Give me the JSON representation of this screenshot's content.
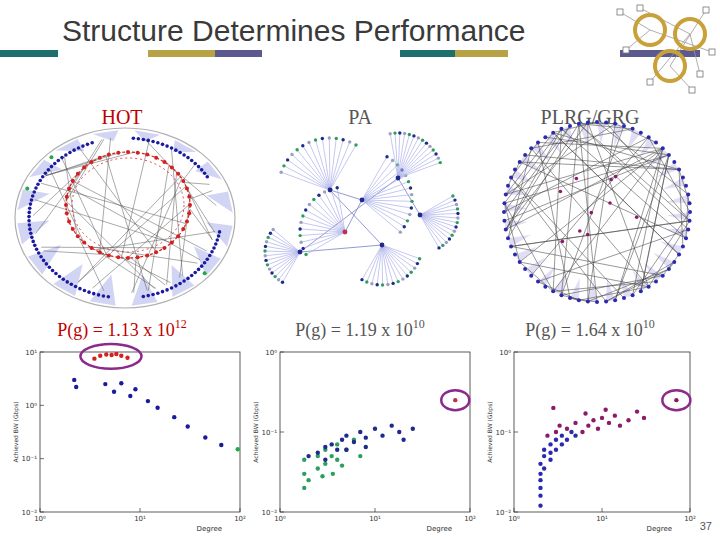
{
  "slide": {
    "title": "Structure Determines Performance",
    "page_number": "37",
    "panels": [
      {
        "heading": "HOT",
        "performance": {
          "text": "P(g) = 1.13 x 10",
          "exponent": "12"
        }
      },
      {
        "heading": "PA",
        "performance": {
          "text": "P(g) = 1.19 x 10",
          "exponent": "10"
        }
      },
      {
        "heading": "PLRG/GRG",
        "performance": {
          "text": "P(g) = 1.64 x 10",
          "exponent": "10"
        }
      }
    ]
  },
  "chart_data": [
    {
      "type": "scatter",
      "log": true,
      "grid": false,
      "marker": "circle",
      "x_label": "Degree",
      "y_label": "Achieved BW (Gbps)",
      "xlim": [
        1,
        100
      ],
      "ylim": [
        0.01,
        10
      ],
      "xticks": [
        {
          "value": 1,
          "label": "10⁰"
        },
        {
          "value": 10,
          "label": "10¹"
        },
        {
          "value": 100,
          "label": "10²"
        }
      ],
      "yticks": [
        {
          "value": 0.01,
          "label": "10⁻²"
        },
        {
          "value": 0.1,
          "label": "10⁻¹"
        },
        {
          "value": 1,
          "label": "10⁰"
        },
        {
          "value": 10,
          "label": "10¹"
        }
      ],
      "series": [
        {
          "color": "#d42020",
          "x": [
            3.5,
            4,
            4.6,
            5.2,
            5.8,
            6.5,
            7.5
          ],
          "values": [
            7.5,
            8.5,
            9,
            8.8,
            9.2,
            8.5,
            7.8
          ]
        },
        {
          "color": "#1a1aa0",
          "x": [
            2.2,
            2.3,
            4.5,
            5.5,
            6.5,
            8,
            9,
            12,
            15,
            22,
            30,
            45,
            65
          ],
          "values": [
            3,
            2.2,
            2.5,
            1.8,
            2.6,
            1.5,
            2,
            1.2,
            0.9,
            0.6,
            0.4,
            0.25,
            0.18
          ]
        },
        {
          "color": "#22aa44",
          "x": [
            95
          ],
          "values": [
            0.15
          ]
        }
      ]
    },
    {
      "type": "scatter",
      "log": true,
      "grid": false,
      "marker": "circle",
      "x_label": "Degree",
      "y_label": "Achieved BW (Gbps)",
      "xlim": [
        1,
        100
      ],
      "ylim": [
        0.01,
        1
      ],
      "xticks": [
        {
          "value": 1,
          "label": "10⁰"
        },
        {
          "value": 10,
          "label": "10¹"
        },
        {
          "value": 100,
          "label": "10²"
        }
      ],
      "yticks": [
        {
          "value": 0.01,
          "label": "10⁻²"
        },
        {
          "value": 0.1,
          "label": "10⁻¹"
        },
        {
          "value": 1,
          "label": "10⁰"
        }
      ],
      "series": [
        {
          "color": "#2e9e5e",
          "x": [
            1.8,
            1.8,
            1.8,
            2.5,
            2.5,
            3,
            3,
            3.5,
            4,
            4,
            5,
            6,
            7,
            2,
            2.8,
            3.6,
            4.5
          ],
          "values": [
            0.02,
            0.03,
            0.045,
            0.035,
            0.05,
            0.04,
            0.06,
            0.05,
            0.045,
            0.07,
            0.06,
            0.08,
            0.05,
            0.025,
            0.028,
            0.03,
            0.038
          ]
        },
        {
          "color": "#1e2a8c",
          "x": [
            2,
            2.5,
            3,
            3.5,
            4,
            4.5,
            5,
            6,
            7,
            8,
            10,
            12,
            15,
            18,
            20,
            25,
            3,
            5,
            8
          ],
          "values": [
            0.05,
            0.055,
            0.065,
            0.07,
            0.06,
            0.08,
            0.09,
            0.075,
            0.1,
            0.085,
            0.11,
            0.09,
            0.12,
            0.1,
            0.08,
            0.11,
            0.045,
            0.06,
            0.065
          ]
        },
        {
          "color": "#c0304a",
          "x": [
            70
          ],
          "values": [
            0.25
          ]
        }
      ]
    },
    {
      "type": "scatter",
      "log": true,
      "grid": false,
      "marker": "circle",
      "x_label": "Degree",
      "y_label": "Achieved BW (Gbps)",
      "xlim": [
        1,
        100
      ],
      "ylim": [
        0.01,
        1
      ],
      "xticks": [
        {
          "value": 1,
          "label": "10⁰"
        },
        {
          "value": 10,
          "label": "10¹"
        },
        {
          "value": 100,
          "label": "10²"
        }
      ],
      "yticks": [
        {
          "value": 0.01,
          "label": "10⁻²"
        },
        {
          "value": 0.1,
          "label": "10⁻¹"
        },
        {
          "value": 1,
          "label": "10⁰"
        }
      ],
      "series": [
        {
          "color": "#2a2ab0",
          "x": [
            2,
            2,
            2,
            2,
            2,
            2,
            2.2,
            2.2,
            2.2,
            2.6,
            2.6,
            2.6,
            3,
            3,
            3.5,
            3.5,
            4,
            4.5,
            5
          ],
          "values": [
            0.012,
            0.016,
            0.02,
            0.025,
            0.03,
            0.04,
            0.05,
            0.06,
            0.035,
            0.045,
            0.055,
            0.07,
            0.06,
            0.08,
            0.07,
            0.09,
            0.08,
            0.1,
            0.09
          ]
        },
        {
          "color": "#8a1a6a",
          "x": [
            2.4,
            3,
            3.3,
            4,
            5,
            6,
            7,
            8,
            9,
            10,
            12,
            14,
            16,
            20,
            25,
            30,
            2.8,
            6.5,
            11
          ],
          "values": [
            0.09,
            0.1,
            0.12,
            0.11,
            0.13,
            0.1,
            0.12,
            0.14,
            0.11,
            0.15,
            0.13,
            0.16,
            0.12,
            0.14,
            0.18,
            0.15,
            0.2,
            0.17,
            0.19
          ]
        },
        {
          "color": "#8a1a6a",
          "x": [
            70
          ],
          "values": [
            0.25
          ]
        }
      ]
    }
  ]
}
